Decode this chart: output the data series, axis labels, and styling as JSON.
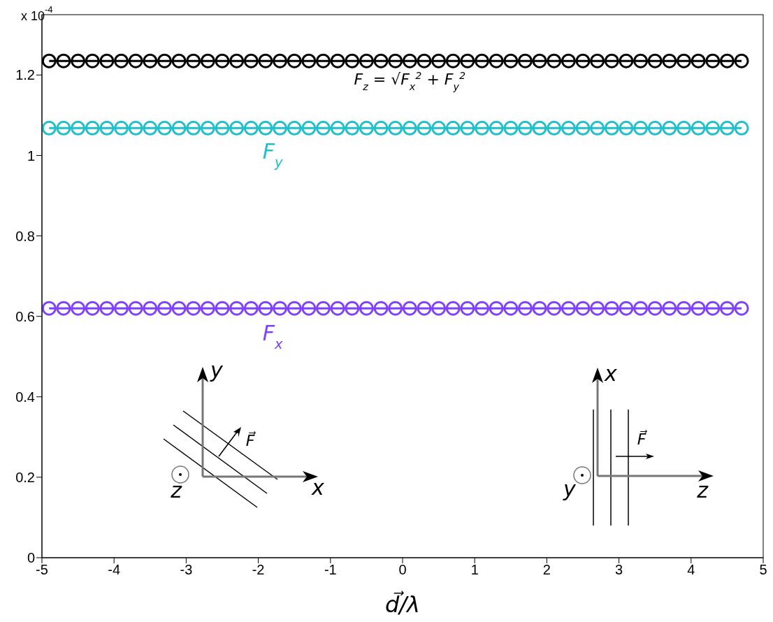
{
  "chart_data": {
    "type": "line",
    "xlabel": "d⃗/λ",
    "marker": "circle",
    "line_style": "solid",
    "x": [
      -4.9,
      -4.7,
      -4.5,
      -4.3,
      -4.1,
      -3.9,
      -3.7,
      -3.5,
      -3.3,
      -3.1,
      -2.9,
      -2.7,
      -2.5,
      -2.3,
      -2.1,
      -1.9,
      -1.7,
      -1.5,
      -1.3,
      -1.1,
      -0.9,
      -0.7,
      -0.5,
      -0.3,
      -0.1,
      0.1,
      0.3,
      0.5,
      0.7,
      0.9,
      1.1,
      1.3,
      1.5,
      1.7,
      1.9,
      2.1,
      2.3,
      2.5,
      2.7,
      2.9,
      3.1,
      3.3,
      3.5,
      3.7,
      3.9,
      4.1,
      4.3,
      4.5,
      4.7
    ],
    "series": [
      {
        "name": "F$_{z}$ = √F$_{x}$$^{2}$ + F$_{y}$$^{2}$",
        "color": "#000000",
        "values": [
          1.235,
          1.235,
          1.235,
          1.235,
          1.235,
          1.235,
          1.235,
          1.235,
          1.235,
          1.235,
          1.235,
          1.235,
          1.235,
          1.235,
          1.235,
          1.235,
          1.235,
          1.235,
          1.235,
          1.235,
          1.235,
          1.235,
          1.235,
          1.235,
          1.235,
          1.235,
          1.235,
          1.235,
          1.235,
          1.235,
          1.235,
          1.235,
          1.235,
          1.235,
          1.235,
          1.235,
          1.235,
          1.235,
          1.235,
          1.235,
          1.235,
          1.235,
          1.235,
          1.235,
          1.235,
          1.235,
          1.235,
          1.235,
          1.235
        ]
      },
      {
        "name": "F$_{y}$",
        "color": "#1fbfcc",
        "values": [
          1.068,
          1.068,
          1.068,
          1.068,
          1.068,
          1.068,
          1.068,
          1.068,
          1.068,
          1.068,
          1.068,
          1.068,
          1.068,
          1.068,
          1.068,
          1.068,
          1.068,
          1.068,
          1.068,
          1.068,
          1.068,
          1.068,
          1.068,
          1.068,
          1.068,
          1.068,
          1.068,
          1.068,
          1.068,
          1.068,
          1.068,
          1.068,
          1.068,
          1.068,
          1.068,
          1.068,
          1.068,
          1.068,
          1.068,
          1.068,
          1.068,
          1.068,
          1.068,
          1.068,
          1.068,
          1.068,
          1.068,
          1.068,
          1.068
        ]
      },
      {
        "name": "F$_{x}$",
        "color": "#8040ff",
        "values": [
          0.62,
          0.62,
          0.62,
          0.62,
          0.62,
          0.62,
          0.62,
          0.62,
          0.62,
          0.62,
          0.62,
          0.62,
          0.62,
          0.62,
          0.62,
          0.62,
          0.62,
          0.62,
          0.62,
          0.62,
          0.62,
          0.62,
          0.62,
          0.62,
          0.62,
          0.62,
          0.62,
          0.62,
          0.62,
          0.62,
          0.62,
          0.62,
          0.62,
          0.62,
          0.62,
          0.62,
          0.62,
          0.62,
          0.62,
          0.62,
          0.62,
          0.62,
          0.62,
          0.62,
          0.62,
          0.62,
          0.62,
          0.62,
          0.62
        ]
      }
    ],
    "xlim": [
      -5,
      5
    ],
    "xticks": [
      -5,
      -4,
      -3,
      -2,
      -1,
      0,
      1,
      2,
      3,
      4,
      5
    ],
    "ylim": [
      0,
      1.35
    ],
    "yticks": [
      0,
      0.2,
      0.4,
      0.6,
      0.8,
      1,
      1.2
    ],
    "annotations": [
      "x 10$^{-4}$",
      "y",
      "F⃗",
      "z",
      "x",
      "x",
      "F⃗",
      "y",
      "z"
    ]
  }
}
